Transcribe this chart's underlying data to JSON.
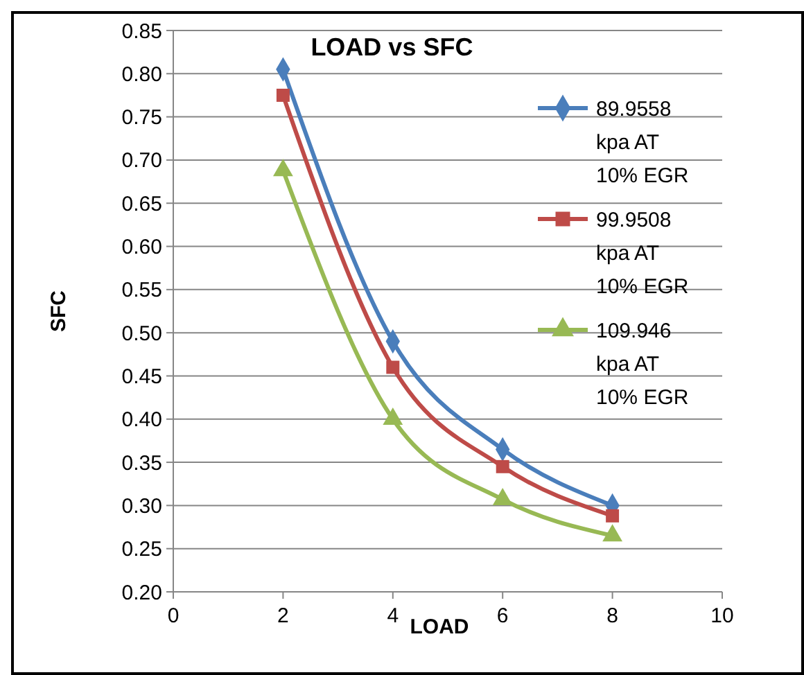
{
  "chart_data": {
    "type": "line",
    "title": "LOAD vs SFC",
    "xlabel": "LOAD",
    "ylabel": "SFC",
    "x": [
      2,
      4,
      6,
      8
    ],
    "series": [
      {
        "name": "89.9558 kpa AT 10% EGR",
        "color": "#4a7ebb",
        "marker": "diamond",
        "values": [
          0.805,
          0.49,
          0.365,
          0.3
        ]
      },
      {
        "name": "99.9508 kpa AT 10% EGR",
        "color": "#be4b48",
        "marker": "square",
        "values": [
          0.775,
          0.46,
          0.345,
          0.288
        ]
      },
      {
        "name": "109.946 kpa AT 10% EGR",
        "color": "#98b954",
        "marker": "triangle",
        "values": [
          0.688,
          0.4,
          0.307,
          0.265
        ]
      }
    ],
    "xlim": [
      0,
      10
    ],
    "xticks": [
      0,
      2,
      4,
      6,
      8,
      10
    ],
    "ylim": [
      0.2,
      0.85
    ],
    "yticks": [
      {
        "value": 0.2,
        "label": "0.20"
      },
      {
        "value": 0.25,
        "label": "0.25"
      },
      {
        "value": 0.3,
        "label": "0.30"
      },
      {
        "value": 0.35,
        "label": "0.35"
      },
      {
        "value": 0.4,
        "label": "0.40"
      },
      {
        "value": 0.45,
        "label": "0.45"
      },
      {
        "value": 0.5,
        "label": "0.50"
      },
      {
        "value": 0.55,
        "label": "0.55"
      },
      {
        "value": 0.6,
        "label": "0.60"
      },
      {
        "value": 0.65,
        "label": "0.65"
      },
      {
        "value": 0.7,
        "label": "0.70"
      },
      {
        "value": 0.75,
        "label": "0.75"
      },
      {
        "value": 0.8,
        "label": "0.80"
      },
      {
        "value": 0.85,
        "label": "0.85"
      }
    ],
    "grid": "y",
    "legend": "top right",
    "line_style": "solid"
  }
}
